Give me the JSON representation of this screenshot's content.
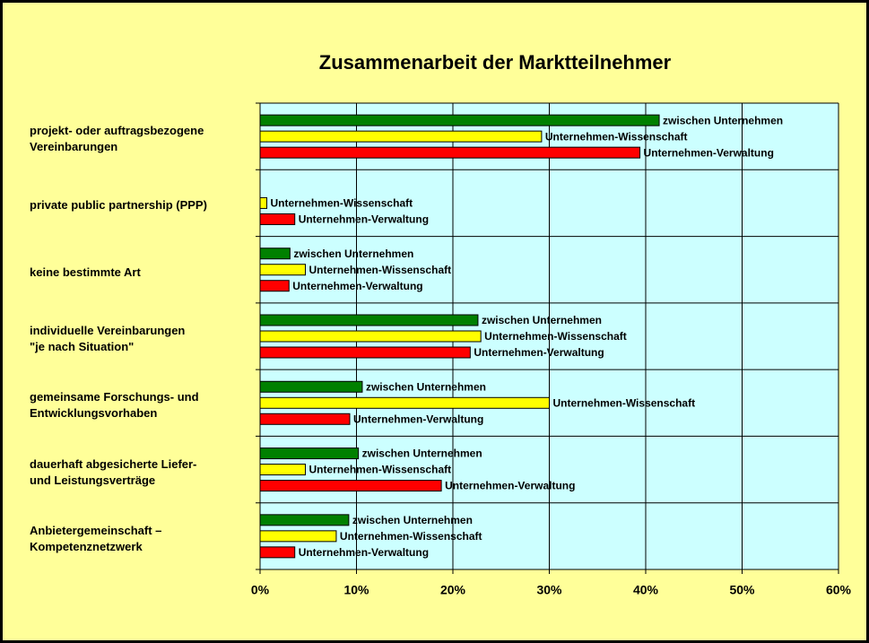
{
  "chart_data": {
    "type": "hbar",
    "title": "Zusammenarbeit der Marktteilnehmer",
    "categories": [
      "projekt- oder auftragsbezogene\nVereinbarungen",
      "private public partnership (PPP)",
      "keine bestimmte Art",
      "individuelle Vereinbarungen\n\"je nach Situation\"",
      "gemeinsame Forschungs- und\nEntwicklungsvorhaben",
      "dauerhaft abgesicherte Liefer-\nund Leistungsverträge",
      "Anbietergemeinschaft –\nKompetenznetzwerk"
    ],
    "series": [
      {
        "name": "zwischen Unternehmen",
        "color": "#008000",
        "values": [
          41.4,
          null,
          3.1,
          22.6,
          10.6,
          10.2,
          9.2
        ]
      },
      {
        "name": "Unternehmen-Wissenschaft",
        "color": "#FFFF00",
        "values": [
          29.2,
          0.7,
          4.7,
          22.9,
          30.0,
          4.7,
          7.9
        ]
      },
      {
        "name": "Unternehmen-Verwaltung",
        "color": "#FF0000",
        "values": [
          39.4,
          3.6,
          3.0,
          21.8,
          9.3,
          18.8,
          3.6
        ]
      }
    ],
    "xlim": [
      0,
      60
    ],
    "xticks": [
      {
        "value": 0,
        "label": "0%"
      },
      {
        "value": 10,
        "label": "10%"
      },
      {
        "value": 20,
        "label": "20%"
      },
      {
        "value": 30,
        "label": "30%"
      },
      {
        "value": 40,
        "label": "40%"
      },
      {
        "value": 50,
        "label": "50%"
      },
      {
        "value": 60,
        "label": "60%"
      }
    ],
    "grid": true
  }
}
